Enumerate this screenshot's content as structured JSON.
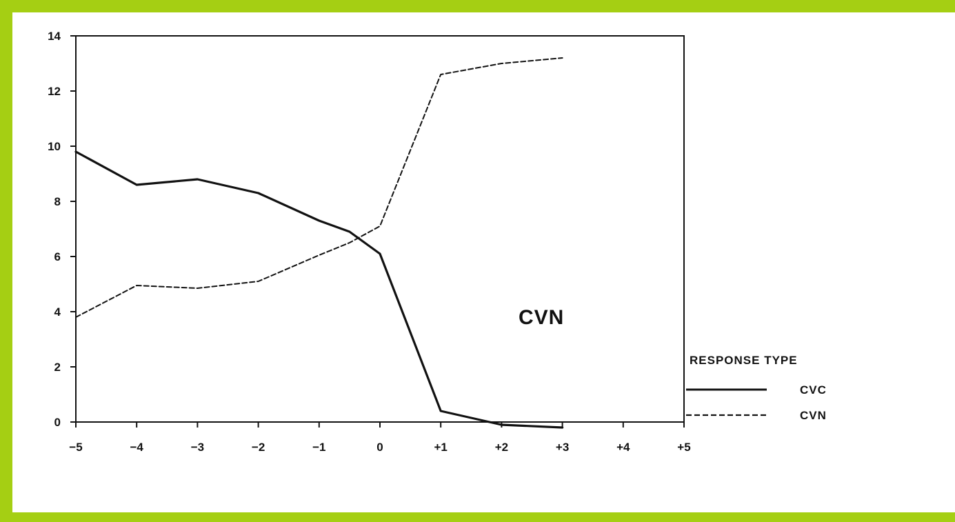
{
  "colors": {
    "frame_border": "#a5cf13",
    "ink": "#111111",
    "background": "#ffffff"
  },
  "chart_data": {
    "type": "line",
    "title": "",
    "xlabel": "",
    "ylabel": "",
    "x_tick_labels": [
      "−5",
      "−4",
      "−3",
      "−2",
      "−1",
      "0",
      "+1",
      "+2",
      "+3",
      "+4",
      "+5"
    ],
    "y_tick_labels": [
      "0",
      "2",
      "4",
      "6",
      "8",
      "10",
      "12",
      "14"
    ],
    "xlim": [
      -5,
      5
    ],
    "ylim": [
      0,
      14
    ],
    "grid": false,
    "annotation": "CVN",
    "legend": {
      "title": "RESPONSE TYPE",
      "placement": "right"
    },
    "series": [
      {
        "name": "CVC",
        "line_style": "solid",
        "x": [
          -5,
          -4,
          -3,
          -2,
          -1,
          -0.5,
          0,
          1,
          2,
          3
        ],
        "y": [
          9.8,
          8.6,
          8.8,
          8.3,
          7.3,
          6.9,
          6.1,
          0.4,
          -0.1,
          -0.2
        ]
      },
      {
        "name": "CVN",
        "line_style": "dashed",
        "x": [
          -5,
          -4,
          -3,
          -2,
          -1,
          -0.5,
          0,
          1,
          2,
          3
        ],
        "y": [
          3.8,
          4.95,
          4.85,
          5.1,
          6.05,
          6.5,
          7.1,
          12.6,
          13.0,
          13.2
        ]
      }
    ]
  }
}
